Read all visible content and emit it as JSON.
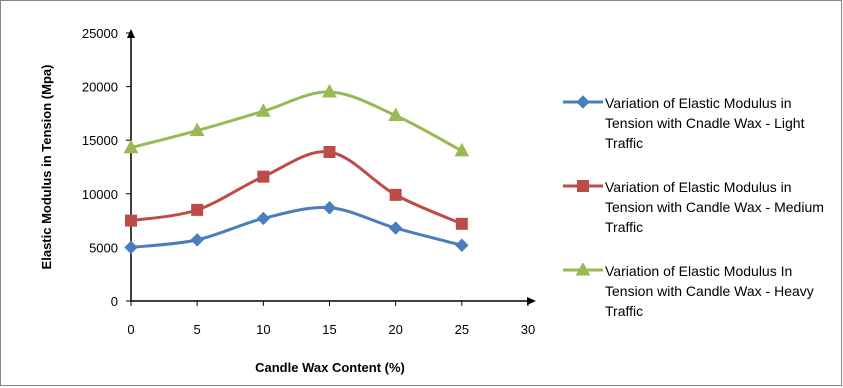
{
  "chart_data": {
    "type": "line",
    "title": "",
    "xlabel": "Candle Wax Content (%)",
    "ylabel": "Elastic Modulus in Tension (Mpa)",
    "xlim": [
      0,
      30
    ],
    "ylim": [
      0,
      25000
    ],
    "x_ticks": [
      "0",
      "5",
      "10",
      "15",
      "20",
      "25",
      "30"
    ],
    "y_ticks": [
      "0",
      "5000",
      "10000",
      "15000",
      "20000",
      "25000"
    ],
    "grid": false,
    "legend_position": "right",
    "x": [
      0,
      5,
      10,
      15,
      20,
      25
    ],
    "series": [
      {
        "name": "Variation of Elastic Modulus in Tension with Cnadle Wax - Light Traffic",
        "color": "#4a7ebb",
        "marker": "diamond",
        "values": [
          5000,
          5700,
          7700,
          8700,
          6800,
          5200
        ]
      },
      {
        "name": "Variation of Elastic Modulus in Tension with Candle Wax - Medium Traffic",
        "color": "#be4b48",
        "marker": "square",
        "values": [
          7500,
          8500,
          11600,
          13900,
          9900,
          7200
        ]
      },
      {
        "name": "Variation of Elastic Modulus In Tension with Candle Wax - Heavy Traffic",
        "color": "#98b954",
        "marker": "triangle",
        "values": [
          14300,
          15900,
          17700,
          19500,
          17300,
          14000
        ]
      }
    ]
  }
}
